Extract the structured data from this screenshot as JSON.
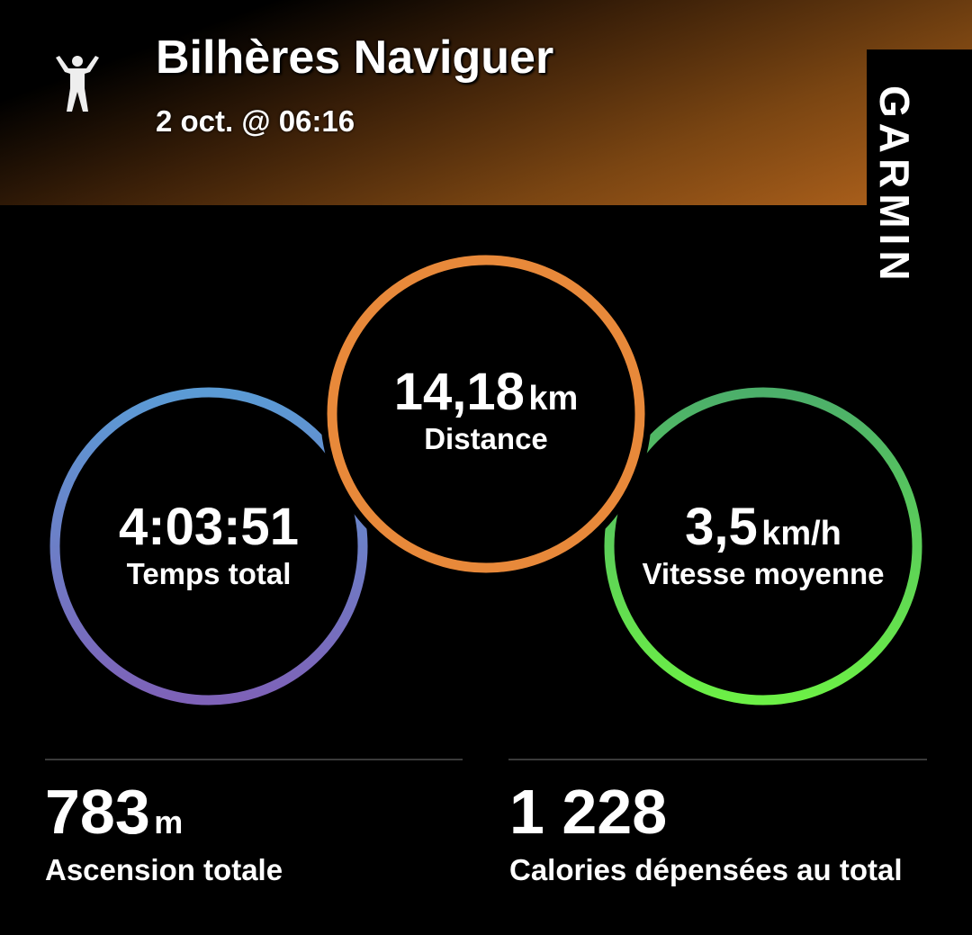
{
  "header": {
    "title": "Bilhères Naviguer",
    "date": "2 oct. @ 06:16",
    "activity_icon": "hiking-person-icon"
  },
  "brand": {
    "logo": "GARMIN"
  },
  "circles": {
    "time": {
      "value": "4:03:51",
      "unit": "",
      "label": "Temps total",
      "colors": [
        "#5b9bd5",
        "#7e62b8"
      ]
    },
    "distance": {
      "value": "14,18",
      "unit": "km",
      "label": "Distance",
      "color": "#e8893a"
    },
    "speed": {
      "value": "3,5",
      "unit": "km/h",
      "label": "Vitesse moyenne",
      "colors": [
        "#4caf6a",
        "#6cf046"
      ]
    }
  },
  "stats": [
    {
      "value": "783",
      "unit": "m",
      "label": "Ascension totale"
    },
    {
      "value": "1 228",
      "unit": "",
      "label": "Calories dépensées au total"
    }
  ]
}
